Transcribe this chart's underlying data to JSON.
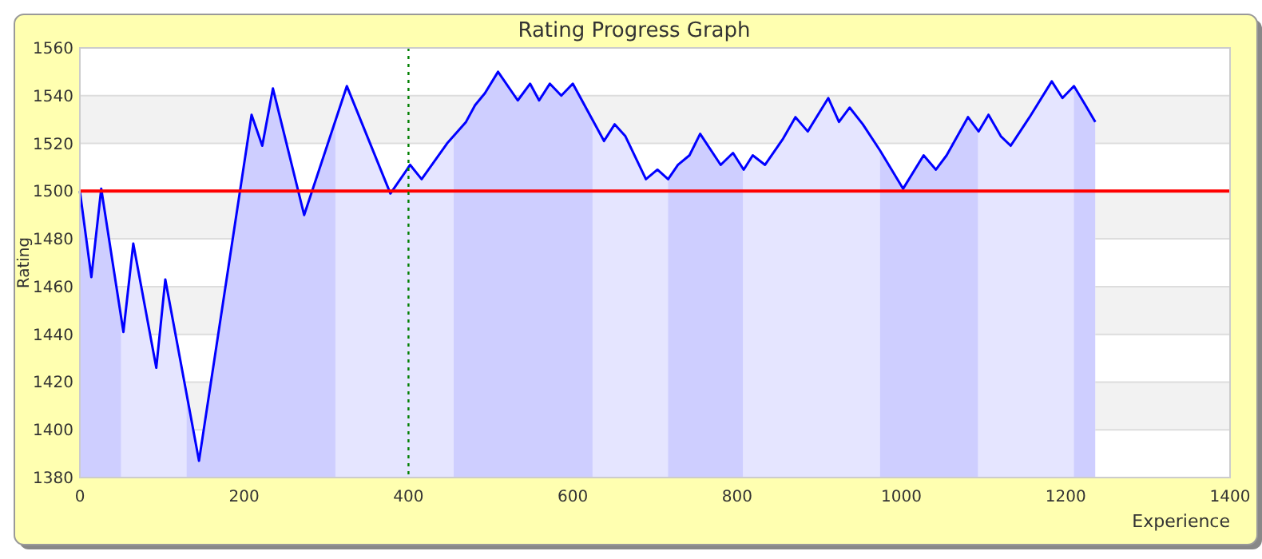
{
  "chart_data": {
    "type": "area",
    "title": "Rating Progress Graph",
    "xlabel": "Experience",
    "ylabel": "Rating",
    "series": [
      {
        "color": "#0000ff",
        "x": [
          0,
          14,
          26,
          53,
          65,
          93,
          104,
          145,
          209,
          222,
          235,
          273,
          325,
          378,
          402,
          416,
          447,
          470,
          481,
          493,
          509,
          533,
          548,
          559,
          572,
          586,
          600,
          638,
          651,
          664,
          689,
          703,
          716,
          728,
          742,
          755,
          780,
          795,
          808,
          819,
          834,
          856,
          871,
          886,
          911,
          924,
          937,
          953,
          974,
          1002,
          1027,
          1042,
          1055,
          1081,
          1094,
          1106,
          1121,
          1133,
          1156,
          1183,
          1196,
          1210,
          1224,
          1236
        ],
        "values": [
          1500,
          1464,
          1501,
          1441,
          1478,
          1426,
          1463,
          1387,
          1532,
          1519,
          1543,
          1490,
          1544,
          1499,
          1511,
          1505,
          1520,
          1529,
          1536,
          1541,
          1550,
          1538,
          1545,
          1538,
          1545,
          1540,
          1545,
          1521,
          1528,
          1523,
          1505,
          1509,
          1505,
          1511,
          1515,
          1524,
          1511,
          1516,
          1509,
          1515,
          1511,
          1522,
          1531,
          1525,
          1539,
          1529,
          1535,
          1528,
          1517,
          1501,
          1515,
          1509,
          1515,
          1531,
          1525,
          1532,
          1523,
          1519,
          1531,
          1546,
          1539,
          1544,
          1536,
          1529
        ]
      }
    ],
    "xlim": [
      0,
      1400
    ],
    "xticks": [
      0,
      200,
      400,
      600,
      800,
      1000,
      1200,
      1400
    ],
    "ylim": [
      1380,
      1560
    ],
    "yticks": [
      1380,
      1400,
      1420,
      1440,
      1460,
      1480,
      1500,
      1520,
      1540,
      1560
    ],
    "grid": "y",
    "ref_lines": [
      {
        "axis": "y",
        "value": 1500,
        "color": "#ff0000",
        "line_style": "solid"
      },
      {
        "axis": "x",
        "value": 400,
        "color": "#008000",
        "line_style": "dotted"
      }
    ],
    "bands": [
      {
        "axis": "x",
        "from": 0,
        "to": 50,
        "color": "#e6e6ff"
      },
      {
        "axis": "x",
        "from": 130,
        "to": 311,
        "color": "#e6e6ff"
      },
      {
        "axis": "x",
        "from": 455,
        "to": 624,
        "color": "#e6e6ff"
      },
      {
        "axis": "x",
        "from": 716,
        "to": 807,
        "color": "#e6e6ff"
      },
      {
        "axis": "x",
        "from": 974,
        "to": 1093,
        "color": "#e6e6ff"
      },
      {
        "axis": "x",
        "from": 1210,
        "to": 1236,
        "color": "#e6e6ff"
      }
    ]
  }
}
